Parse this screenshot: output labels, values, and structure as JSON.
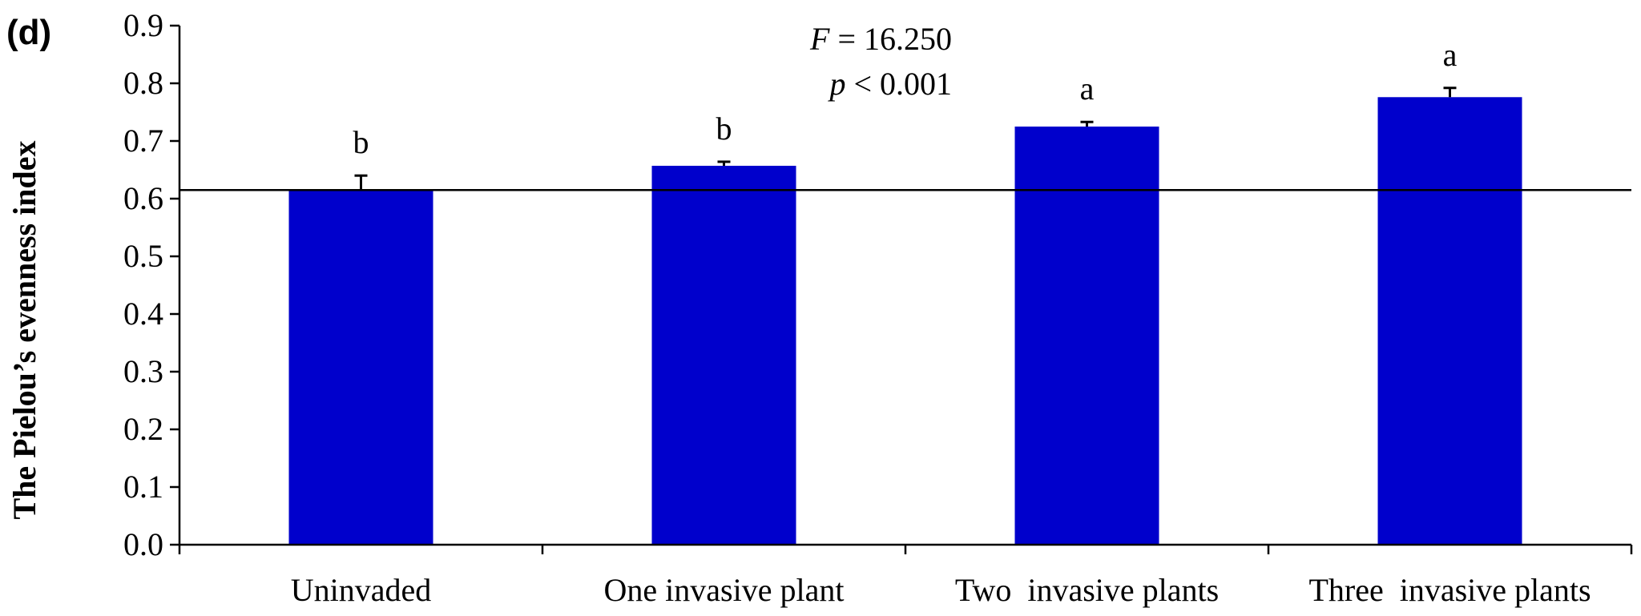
{
  "chart_data": {
    "type": "bar",
    "panel_label": "(d)",
    "ylabel": "The Pielou’s evenness index",
    "xlabel": "",
    "categories": [
      "Uninvaded",
      "One invasive plant",
      "Two  invasive plants",
      "Three  invasive plants"
    ],
    "values": [
      0.615,
      0.657,
      0.725,
      0.776
    ],
    "errors": [
      0.025,
      0.007,
      0.008,
      0.016
    ],
    "significance_letters": [
      "b",
      "b",
      "a",
      "a"
    ],
    "ylim": [
      0,
      0.9
    ],
    "yticks": [
      0.0,
      0.1,
      0.2,
      0.3,
      0.4,
      0.5,
      0.6,
      0.7,
      0.8,
      0.9
    ],
    "ytick_labels": [
      "0.0",
      "0.1",
      "0.2",
      "0.3",
      "0.4",
      "0.5",
      "0.6",
      "0.7",
      "0.8",
      "0.9"
    ],
    "reference_line": 0.615,
    "grid": false,
    "bar_color": "#0000cc",
    "annotations": {
      "stat_f_symbol": "F",
      "stat_f_rest": " = 16.250",
      "stat_p_symbol": "p",
      "stat_p_rest": " < 0.001"
    }
  }
}
